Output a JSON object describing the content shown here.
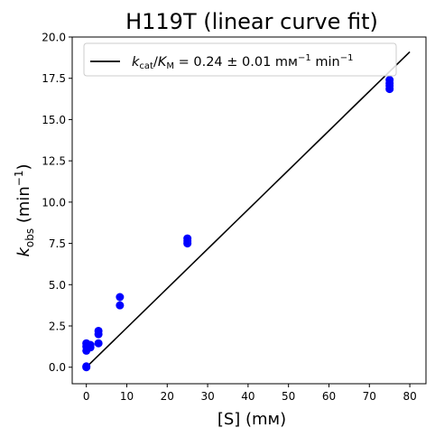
{
  "chart_data": {
    "type": "scatter",
    "title": "H119T (linear curve fit)",
    "xlabel": "[S] (mм)",
    "ylabel": {
      "main": "k",
      "sub": "obs",
      "rest": " (min",
      "sup": "−1",
      "end": ")"
    },
    "xlim": [
      -3.5,
      84
    ],
    "ylim": [
      -1.0,
      20.0
    ],
    "xticks": [
      0,
      10,
      20,
      30,
      40,
      50,
      60,
      70,
      80
    ],
    "xtick_labels": [
      "0",
      "10",
      "20",
      "30",
      "40",
      "50",
      "60",
      "70",
      "80"
    ],
    "yticks": [
      0.0,
      2.5,
      5.0,
      7.5,
      10.0,
      12.5,
      15.0,
      17.5,
      20.0
    ],
    "ytick_labels": [
      "0.0",
      "2.5",
      "5.0",
      "7.5",
      "10.0",
      "12.5",
      "15.0",
      "17.5",
      "20.0"
    ],
    "grid": false,
    "legend_location": "upper-left",
    "series": [
      {
        "kind": "points",
        "color": "#0000ff",
        "points": [
          [
            0,
            0.0
          ],
          [
            0,
            0.05
          ],
          [
            0,
            1.0
          ],
          [
            0,
            1.25
          ],
          [
            0,
            1.45
          ],
          [
            1,
            1.2
          ],
          [
            1,
            1.35
          ],
          [
            3,
            1.45
          ],
          [
            3,
            2.0
          ],
          [
            3,
            2.2
          ],
          [
            8.3,
            3.75
          ],
          [
            8.3,
            4.25
          ],
          [
            25,
            7.5
          ],
          [
            25,
            7.65
          ],
          [
            25,
            7.8
          ],
          [
            75,
            16.85
          ],
          [
            75,
            17.05
          ],
          [
            75,
            17.2
          ],
          [
            75,
            17.4
          ]
        ]
      },
      {
        "kind": "line",
        "color": "#000000",
        "legend": {
          "a": "k",
          "a_sub": "cat",
          "slash": "/",
          "b": "K",
          "b_sub": "M",
          "rest": " = 0.24 ± 0.01 mм",
          "sup1": "−1",
          "mid": " min",
          "sup2": "−1"
        },
        "x": [
          0,
          80
        ],
        "y": [
          0.0,
          19.1
        ]
      }
    ]
  }
}
